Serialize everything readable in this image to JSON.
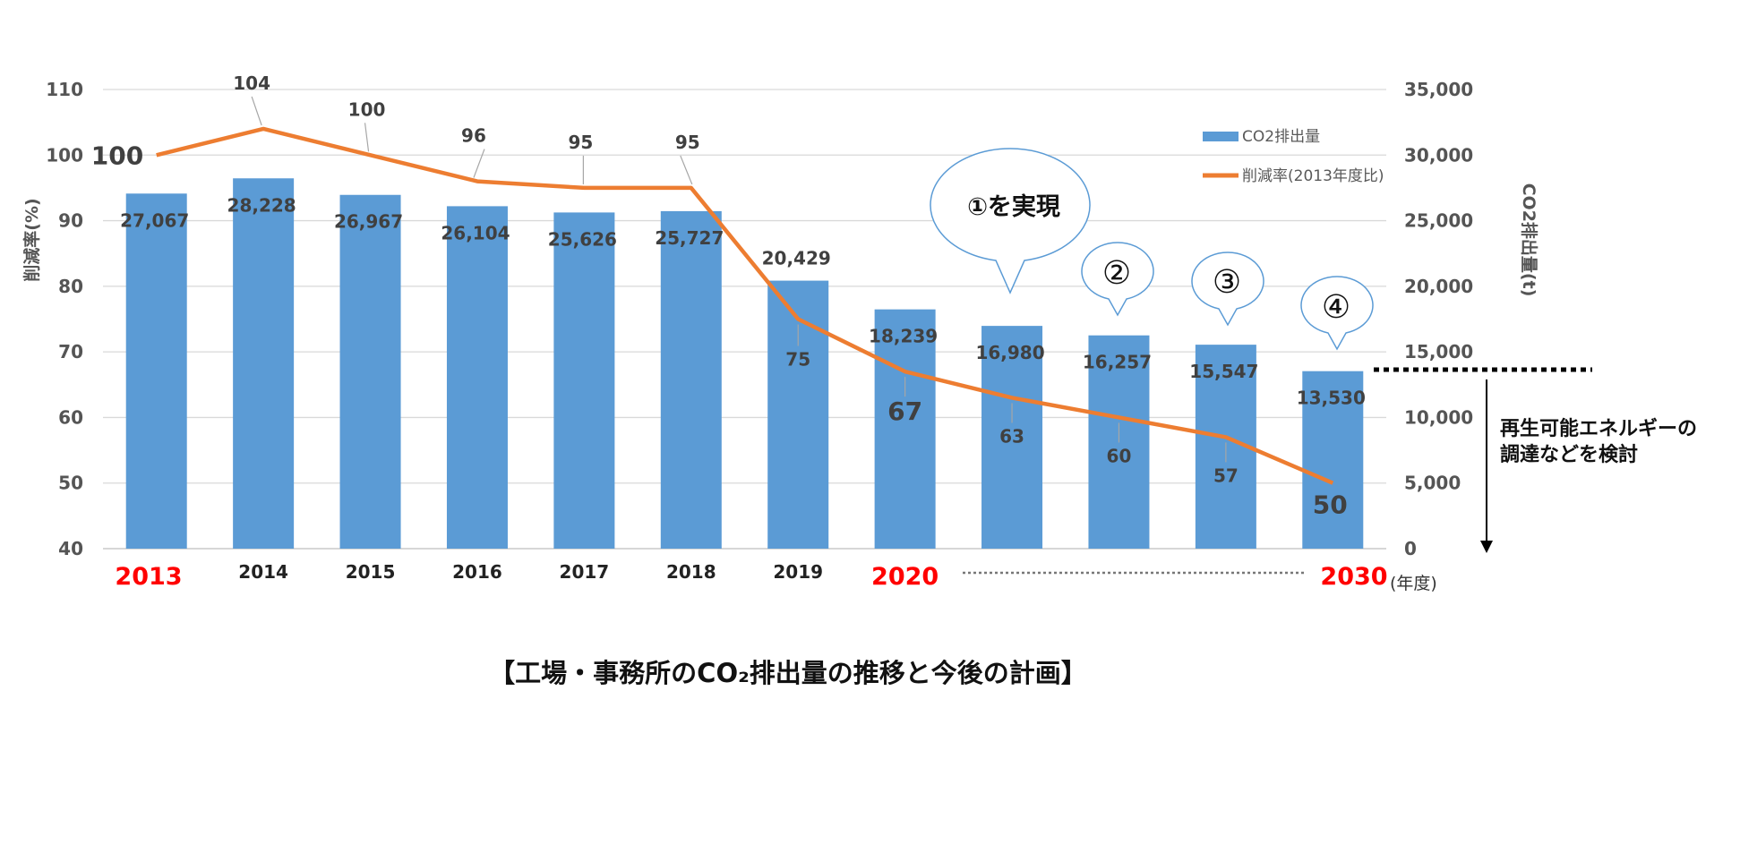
{
  "chart_data": {
    "type": "bar",
    "categories": [
      "2013",
      "2014",
      "2015",
      "2016",
      "2017",
      "2018",
      "2019",
      "2020",
      "",
      "",
      "",
      "2030"
    ],
    "highlighted_categories": [
      "2013",
      "2020",
      "2030"
    ],
    "x_unit": "(年度)",
    "series": [
      {
        "name": "CO2排出量",
        "type": "bar",
        "axis": "right",
        "color": "#5b9bd5",
        "values": [
          27067,
          28228,
          26967,
          26104,
          25626,
          25727,
          20429,
          18239,
          16980,
          16257,
          15547,
          13530
        ],
        "labels": [
          "27,067",
          "28,228",
          "26,967",
          "26,104",
          "25,626",
          "25,727",
          "20,429",
          "18,239",
          "16,980",
          "16,257",
          "15,547",
          "13,530"
        ]
      },
      {
        "name": "削減率(2013年度比)",
        "type": "line",
        "axis": "left",
        "color": "#ed7d31",
        "values": [
          100,
          104,
          100,
          96,
          95,
          95,
          75,
          67,
          63,
          60,
          57,
          50
        ],
        "labels": [
          "100",
          "104",
          "100",
          "96",
          "95",
          "95",
          "75",
          "67",
          "63",
          "60",
          "57",
          "50"
        ]
      }
    ],
    "y_left": {
      "label": "削減率(%)",
      "min": 40,
      "max": 110,
      "ticks": [
        "40",
        "50",
        "60",
        "70",
        "80",
        "90",
        "100",
        "110"
      ]
    },
    "y_right": {
      "label": "CO2排出量(t)",
      "min": 0,
      "max": 35000,
      "ticks": [
        "0",
        "5,000",
        "10,000",
        "15,000",
        "20,000",
        "25,000",
        "30,000",
        "35,000"
      ]
    },
    "legend": {
      "position": "top-right"
    },
    "grid": true,
    "annotations": {
      "bubbles": [
        {
          "category_index": 8,
          "text": "①を実現"
        },
        {
          "category_index": 9,
          "text": "②"
        },
        {
          "category_index": 10,
          "text": "③"
        },
        {
          "category_index": 11,
          "text": "④"
        }
      ],
      "note": [
        "再生可能エネルギーの",
        "調達などを検討"
      ]
    },
    "caption": "【工場・事務所のCO₂排出量の推移と今後の計画】"
  }
}
